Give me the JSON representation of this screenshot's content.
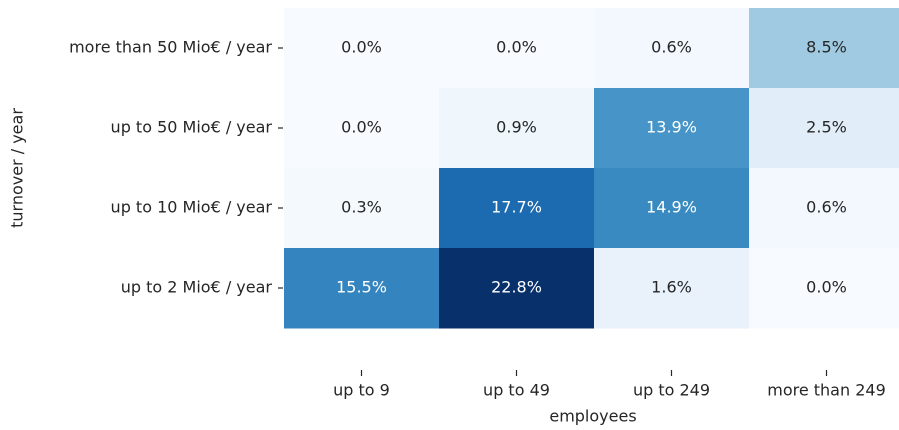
{
  "chart_data": {
    "type": "heatmap",
    "xlabel": "employees",
    "ylabel": "turnover / year",
    "x_categories": [
      "up to 9",
      "up to 49",
      "up to 249",
      "more than 249"
    ],
    "y_categories": [
      "more than 50 Mio€ / year",
      "up to 50 Mio€ / year",
      "up to 10 Mio€ / year",
      "up to 2 Mio€ / year"
    ],
    "values": [
      [
        0.0,
        0.0,
        0.6,
        8.5
      ],
      [
        0.0,
        0.9,
        13.9,
        2.5
      ],
      [
        0.3,
        17.7,
        14.9,
        0.6
      ],
      [
        15.5,
        22.8,
        1.6,
        0.0
      ]
    ],
    "value_labels": [
      [
        "0.0%",
        "0.0%",
        "0.6%",
        "8.5%"
      ],
      [
        "0.0%",
        "0.9%",
        "13.9%",
        "2.5%"
      ],
      [
        "0.3%",
        "17.7%",
        "14.9%",
        "0.6%"
      ],
      [
        "15.5%",
        "22.8%",
        "1.6%",
        "0.0%"
      ]
    ],
    "colormap": "Blues"
  }
}
